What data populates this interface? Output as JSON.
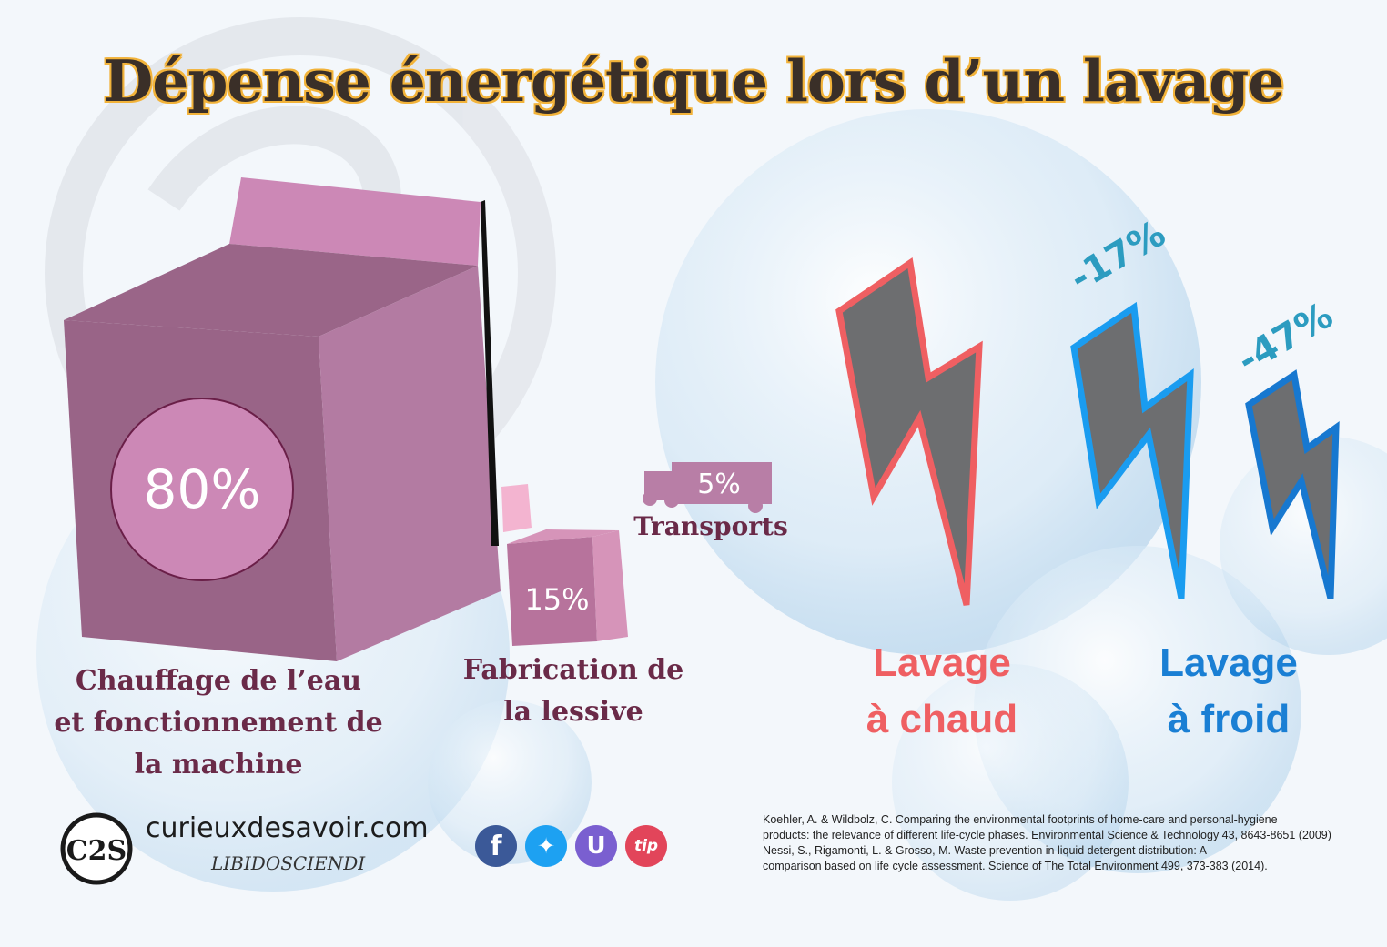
{
  "title": "Dépense énergétique lors d’un lavage",
  "categories": [
    {
      "percent": "80%",
      "caption_lines": [
        "Chauffage de l’eau",
        "et fonctionnement de",
        "la machine"
      ]
    },
    {
      "percent": "15%",
      "caption_lines": [
        "Fabrication de",
        "la lessive"
      ]
    },
    {
      "percent": "5%",
      "caption_lines": [
        "Transports"
      ]
    }
  ],
  "comparison": {
    "hot": {
      "lines": [
        "Lavage",
        "à chaud"
      ],
      "color": "#ef5f62"
    },
    "cold": {
      "lines": [
        "Lavage",
        "à froid"
      ],
      "color": "#1a7fd4"
    },
    "reductions": [
      "-17%",
      "-47%"
    ]
  },
  "footer": {
    "logo_letters": "C2S",
    "site": "curieuxdesavoir.com",
    "tagline": "LIBIDOSCIENDI",
    "social_icons": [
      {
        "name": "facebook-icon",
        "glyph": "f",
        "color": "#3b5998"
      },
      {
        "name": "twitter-icon",
        "glyph": "✦",
        "color": "#1da1f2"
      },
      {
        "name": "utip-icon",
        "glyph": "U",
        "color": "#7a5fd0"
      },
      {
        "name": "tipeee-icon",
        "glyph": "tip",
        "color": "#e2455a"
      }
    ],
    "references": [
      "Koehler, A. & Wildbolz, C. Comparing the environmental footprints of home-care and personal-hygiene",
      "products: the relevance of different life-cycle phases. Environmental Science & Technology 43, 8643-8651 (2009)",
      "Nessi, S., Rigamonti, L. & Grosso, M. Waste prevention in liquid detergent distribution: A",
      "comparison based on life cycle assessment. Science of The Total Environment 499, 373-383 (2014)."
    ]
  }
}
